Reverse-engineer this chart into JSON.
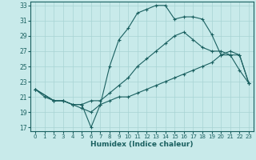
{
  "xlabel": "Humidex (Indice chaleur)",
  "bg_color": "#c8eaea",
  "grid_color": "#a8d4d4",
  "line_color": "#1a6060",
  "xlim": [
    -0.5,
    23.5
  ],
  "ylim": [
    16.5,
    33.5
  ],
  "xticks": [
    0,
    1,
    2,
    3,
    4,
    5,
    6,
    7,
    8,
    9,
    10,
    11,
    12,
    13,
    14,
    15,
    16,
    17,
    18,
    19,
    20,
    21,
    22,
    23
  ],
  "yticks": [
    17,
    19,
    21,
    23,
    25,
    27,
    29,
    31,
    33
  ],
  "line1_x": [
    0,
    1,
    2,
    3,
    4,
    5,
    6,
    7,
    8,
    9,
    10,
    11,
    12,
    13,
    14,
    15,
    16,
    17,
    18,
    19,
    20,
    21,
    22,
    23
  ],
  "line1_y": [
    22,
    21,
    20.5,
    20.5,
    20,
    20,
    17,
    20,
    25,
    28.5,
    30,
    32,
    32.5,
    33,
    33,
    31.2,
    31.5,
    31.5,
    31.2,
    29.2,
    26.5,
    26.5,
    24.5,
    22.8
  ],
  "line2_x": [
    0,
    2,
    3,
    4,
    5,
    6,
    7,
    8,
    9,
    10,
    11,
    12,
    13,
    14,
    15,
    16,
    17,
    18,
    19,
    20,
    21,
    22,
    23
  ],
  "line2_y": [
    22,
    20.5,
    20.5,
    20,
    20,
    20.5,
    20.5,
    21.5,
    22.5,
    23.5,
    25,
    26,
    27,
    28,
    29,
    29.5,
    28.5,
    27.5,
    27,
    27,
    26.5,
    26.5,
    22.8
  ],
  "line3_x": [
    0,
    2,
    3,
    4,
    5,
    6,
    7,
    8,
    9,
    10,
    11,
    12,
    13,
    14,
    15,
    16,
    17,
    18,
    19,
    20,
    21,
    22,
    23
  ],
  "line3_y": [
    22,
    20.5,
    20.5,
    20,
    19.5,
    19,
    20,
    20.5,
    21,
    21,
    21.5,
    22,
    22.5,
    23,
    23.5,
    24,
    24.5,
    25,
    25.5,
    26.5,
    27,
    26.5,
    22.8
  ]
}
